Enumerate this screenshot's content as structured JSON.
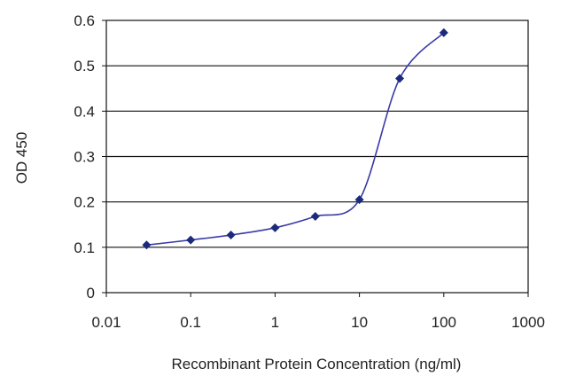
{
  "chart_data": {
    "type": "line",
    "title": "",
    "xlabel": "Recombinant Protein Concentration (ng/ml)",
    "ylabel": "OD 450",
    "x_scale": "log",
    "xlim": [
      0.01,
      1000
    ],
    "ylim": [
      0,
      0.6
    ],
    "x_ticks": [
      0.01,
      0.1,
      1,
      10,
      100,
      1000
    ],
    "x_tick_labels": [
      "0.01",
      "0.1",
      "1",
      "10",
      "100",
      "1000"
    ],
    "y_ticks": [
      0,
      0.1,
      0.2,
      0.3,
      0.4,
      0.5,
      0.6
    ],
    "y_tick_labels": [
      "0",
      "0.1",
      "0.2",
      "0.3",
      "0.4",
      "0.5",
      "0.6"
    ],
    "grid": "horizontal",
    "legend": "none",
    "series": [
      {
        "x": [
          0.03,
          0.1,
          0.3,
          1,
          3,
          10,
          30,
          100
        ],
        "y": [
          0.105,
          0.116,
          0.127,
          0.143,
          0.168,
          0.205,
          0.472,
          0.573
        ]
      }
    ],
    "colors": {
      "line": "#3a3aa8",
      "marker": "#1c2a7a",
      "grid": "#111111",
      "frame": "#111111"
    }
  }
}
